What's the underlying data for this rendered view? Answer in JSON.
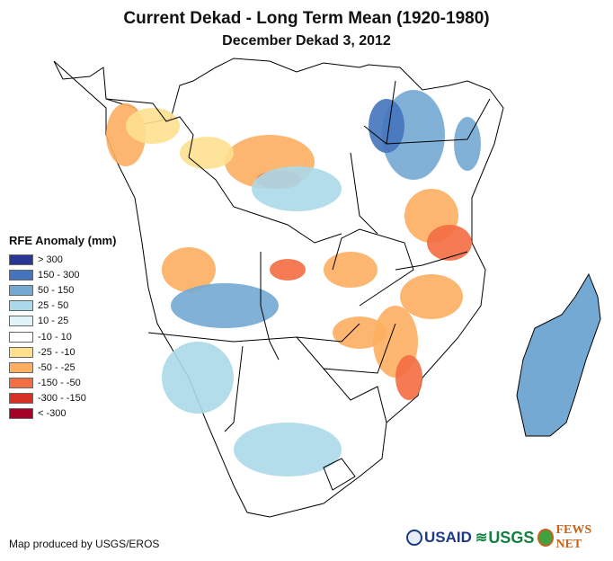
{
  "title": "Current Dekad - Long Term Mean (1920-1980)",
  "subtitle": "December Dekad 3, 2012",
  "legend": {
    "title": "RFE Anomaly (mm)",
    "items": [
      {
        "label": "> 300",
        "color": "#2b3593"
      },
      {
        "label": "150 - 300",
        "color": "#4474bd"
      },
      {
        "label": "50 - 150",
        "color": "#74a9d3"
      },
      {
        "label": "25 - 50",
        "color": "#abd9e9"
      },
      {
        "label": "10 - 25",
        "color": "#e0f3f8"
      },
      {
        "label": "-10 - 10",
        "color": "#ffffff"
      },
      {
        "label": "-25 - -10",
        "color": "#fee090"
      },
      {
        "label": "-50 - -25",
        "color": "#fdae61"
      },
      {
        "label": "-150 - -50",
        "color": "#f46d43"
      },
      {
        "label": "-300 - -150",
        "color": "#d73027"
      },
      {
        "label": "< -300",
        "color": "#a50026"
      }
    ]
  },
  "credit": "Map produced by USGS/EROS",
  "logos": {
    "usaid": "USAID",
    "usgs": "USGS",
    "fews": "FEWS NET"
  },
  "map": {
    "region": "Central and Southern Africa and Madagascar",
    "border_color": "#000000"
  }
}
